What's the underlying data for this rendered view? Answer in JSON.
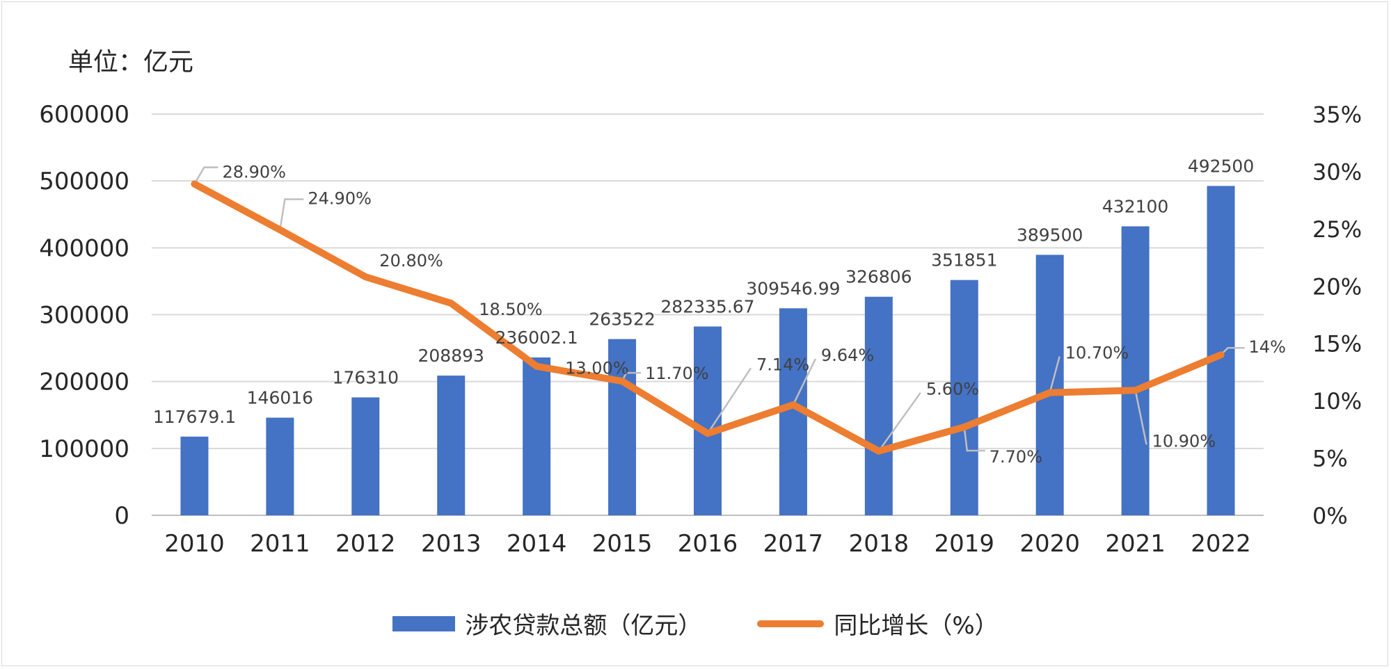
{
  "chart_data": {
    "type": "bar+line",
    "unit_label": "单位：亿元",
    "categories": [
      "2010",
      "2011",
      "2012",
      "2013",
      "2014",
      "2015",
      "2016",
      "2017",
      "2018",
      "2019",
      "2020",
      "2021",
      "2022"
    ],
    "series": [
      {
        "name": "涉农贷款总额（亿元）",
        "type": "bar",
        "axis": "left",
        "color": "#4472C4",
        "values": [
          117679.1,
          146016,
          176310,
          208893,
          236002.1,
          263522,
          282335.67,
          309546.99,
          326806,
          351851,
          389500,
          432100,
          492500
        ],
        "labels": [
          "117679.1",
          "146016",
          "176310",
          "208893",
          "236002.1",
          "263522",
          "282335.67",
          "309546.99",
          "326806",
          "351851",
          "389500",
          "432100",
          "492500"
        ]
      },
      {
        "name": "同比增长（%）",
        "type": "line",
        "axis": "right",
        "color": "#ED7D31",
        "values": [
          28.9,
          24.9,
          20.8,
          18.5,
          13.0,
          11.7,
          7.14,
          9.64,
          5.6,
          7.7,
          10.7,
          10.9,
          14
        ],
        "labels": [
          "28.90%",
          "24.90%",
          "20.80%",
          "18.50%",
          "13.00%",
          "11.70%",
          "7.14%",
          "9.64%",
          "5.60%",
          "7.70%",
          "10.70%",
          "10.90%",
          "14%"
        ]
      }
    ],
    "y_left": {
      "min": 0,
      "max": 600000,
      "step": 100000,
      "ticks": [
        "0",
        "100000",
        "200000",
        "300000",
        "400000",
        "500000",
        "600000"
      ]
    },
    "y_right": {
      "min": 0,
      "max": 35,
      "step": 5,
      "ticks": [
        "0%",
        "5%",
        "10%",
        "15%",
        "20%",
        "25%",
        "30%",
        "35%"
      ]
    },
    "grid": true,
    "legend_position": "bottom"
  }
}
